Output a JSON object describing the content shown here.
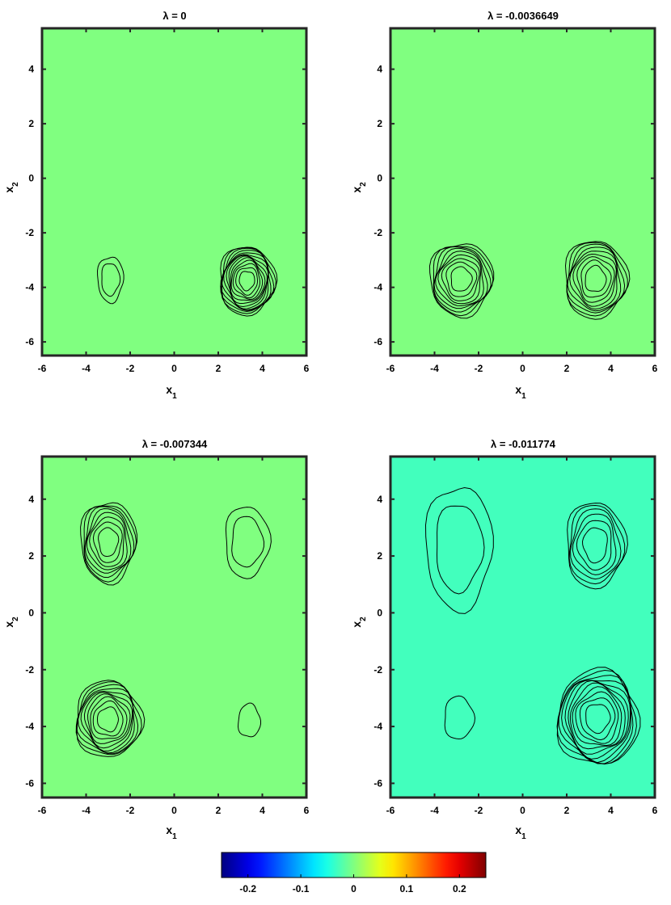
{
  "chart_data": [
    {
      "type": "contour",
      "title_prefix": "λ = ",
      "title_value": "0",
      "xlabel_main": "x",
      "xlabel_sub": "1",
      "ylabel_main": "x",
      "ylabel_sub": "2",
      "xlim": [
        -6,
        6
      ],
      "ylim": [
        -6.5,
        5.5
      ],
      "xticks": [
        "-6",
        "-4",
        "-2",
        "0",
        "2",
        "4",
        "6"
      ],
      "yticks": [
        "-6",
        "-4",
        "-2",
        "0",
        "2",
        "4"
      ],
      "background_value": 0,
      "blobs": [
        {
          "cx": -2.9,
          "cy": -3.7,
          "sx": 0.35,
          "sy": 0.5,
          "amp": 0.035,
          "levels": 2
        },
        {
          "cx": 3.3,
          "cy": -3.75,
          "sx": 0.75,
          "sy": 0.75,
          "amp": 0.25,
          "levels": 13
        }
      ]
    },
    {
      "type": "contour",
      "title_prefix": "λ = ",
      "title_value": "-0.0036649",
      "xlabel_main": "x",
      "xlabel_sub": "1",
      "ylabel_main": "x",
      "ylabel_sub": "2",
      "xlim": [
        -6,
        6
      ],
      "ylim": [
        -6.5,
        5.5
      ],
      "xticks": [
        "-6",
        "-4",
        "-2",
        "0",
        "2",
        "4",
        "6"
      ],
      "yticks": [
        "-6",
        "-4",
        "-2",
        "0",
        "2",
        "4"
      ],
      "background_value": 0,
      "blobs": [
        {
          "cx": -2.8,
          "cy": -3.7,
          "sx": 0.85,
          "sy": 0.8,
          "amp": 0.2,
          "levels": 9
        },
        {
          "cx": 3.3,
          "cy": -3.7,
          "sx": 0.85,
          "sy": 0.85,
          "amp": -0.2,
          "levels": 9
        }
      ]
    },
    {
      "type": "contour",
      "title_prefix": "λ = ",
      "title_value": "-0.007344",
      "xlabel_main": "x",
      "xlabel_sub": "1",
      "ylabel_main": "x",
      "ylabel_sub": "2",
      "xlim": [
        -6,
        6
      ],
      "ylim": [
        -6.5,
        5.5
      ],
      "xticks": [
        "-6",
        "-4",
        "-2",
        "0",
        "2",
        "4",
        "6"
      ],
      "yticks": [
        "-6",
        "-4",
        "-2",
        "0",
        "2",
        "4"
      ],
      "background_value": 0,
      "blobs": [
        {
          "cx": -3.0,
          "cy": 2.5,
          "sx": 0.75,
          "sy": 0.85,
          "amp": 0.17,
          "levels": 8
        },
        {
          "cx": 3.3,
          "cy": 2.5,
          "sx": 0.6,
          "sy": 0.75,
          "amp": 0.045,
          "levels": 2
        },
        {
          "cx": -3.0,
          "cy": -3.75,
          "sx": 0.9,
          "sy": 0.8,
          "amp": -0.22,
          "levels": 10
        },
        {
          "cx": 3.4,
          "cy": -3.8,
          "sx": 0.3,
          "sy": 0.35,
          "amp": 0.02,
          "levels": 1
        }
      ]
    },
    {
      "type": "contour",
      "title_prefix": "λ = ",
      "title_value": "-0.011774",
      "xlabel_main": "x",
      "xlabel_sub": "1",
      "ylabel_main": "x",
      "ylabel_sub": "2",
      "xlim": [
        -6,
        6
      ],
      "ylim": [
        -6.5,
        5.5
      ],
      "xticks": [
        "-6",
        "-4",
        "-2",
        "0",
        "2",
        "4",
        "6"
      ],
      "yticks": [
        "-6",
        "-4",
        "-2",
        "0",
        "2",
        "4"
      ],
      "background_value": -0.03,
      "blobs": [
        {
          "cx": -2.9,
          "cy": 2.3,
          "sx": 0.9,
          "sy": 1.3,
          "amp": 0.06,
          "levels": 2
        },
        {
          "cx": 3.3,
          "cy": 2.4,
          "sx": 0.8,
          "sy": 0.9,
          "amp": -0.15,
          "levels": 6
        },
        {
          "cx": -2.9,
          "cy": -3.7,
          "sx": 0.4,
          "sy": 0.45,
          "amp": -0.03,
          "levels": 1
        },
        {
          "cx": 3.4,
          "cy": -3.7,
          "sx": 1.1,
          "sy": 1.0,
          "amp": 0.24,
          "levels": 11
        }
      ]
    }
  ],
  "colorbar": {
    "range": [
      -0.25,
      0.25
    ],
    "tick_values": [
      -0.2,
      -0.1,
      0,
      0.1,
      0.2
    ],
    "tick_labels": [
      "-0.2",
      "-0.1",
      "0",
      "0.1",
      "0.2"
    ]
  },
  "colors": {
    "frame": "#262626",
    "contour": "#000000"
  }
}
